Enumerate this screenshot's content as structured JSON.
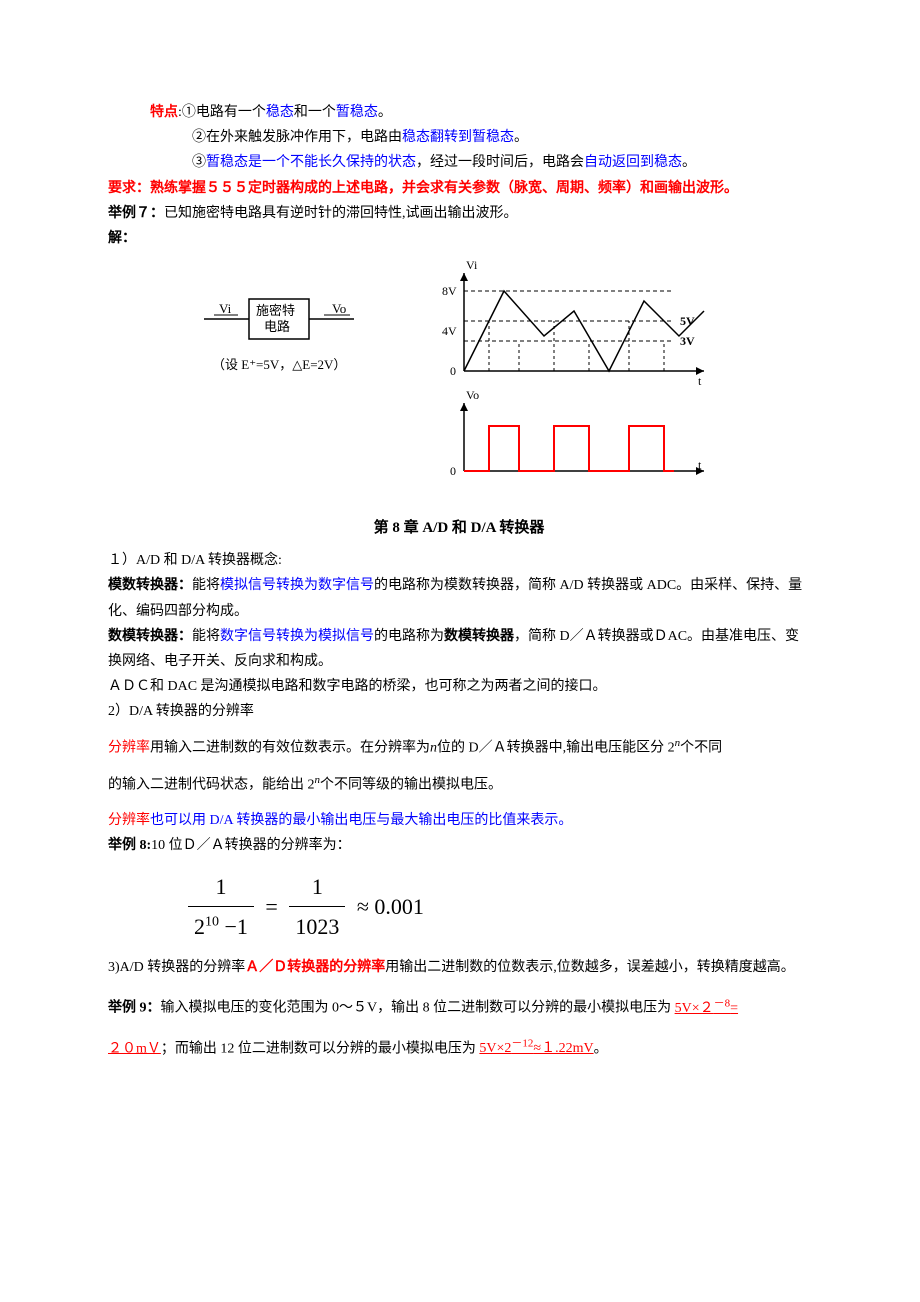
{
  "line1": {
    "label": "特点",
    "text": ":①电路有一个",
    "blue1": "稳态",
    "mid": "和一个",
    "blue2": "暂稳态",
    "end": "。"
  },
  "line2": {
    "text": "②在外来触发脉冲作用下，电路由",
    "blue": "稳态翻转到暂稳态",
    "end": "。"
  },
  "line3": {
    "pre": "③",
    "blue1": "暂稳态是一个不能长久保持的状态",
    "mid": "，经过一段时间后，电路会",
    "blue2": "自动返回到稳态",
    "end": "。"
  },
  "line4": {
    "label": "要求：",
    "text": "熟练掌握５５５定时器构成的上述电路，并会求有关参数（脉宽、周期、频率）和画输出波形。"
  },
  "line5": {
    "label": "举例７：",
    "text": "已知施密特电路具有逆时针的滞回特性,试画出输出波形。"
  },
  "line6": {
    "label": "解："
  },
  "block": {
    "in": "Vi",
    "name1": "施密特",
    "name2": "电路",
    "out": "Vo",
    "cond": "（设 E⁺=5V，△E=2V）"
  },
  "graph": {
    "vi_label": "Vi",
    "vo_label": "Vo",
    "t_label": "t",
    "y_ticks": [
      "8V",
      "4V",
      "0"
    ],
    "thr_hi": "5V",
    "thr_lo": "3V",
    "vo_zero": "0",
    "vi_points": [
      [
        0,
        0
      ],
      [
        40,
        80
      ],
      [
        80,
        35
      ],
      [
        110,
        60
      ],
      [
        145,
        0
      ],
      [
        180,
        70
      ],
      [
        215,
        35
      ],
      [
        240,
        60
      ]
    ],
    "env_dash_y": 80,
    "thr_hi_y": 50,
    "thr_lo_y": 30,
    "vo_pulses": [
      [
        25,
        55
      ],
      [
        90,
        125
      ],
      [
        165,
        200
      ]
    ],
    "colors": {
      "axis": "#000000",
      "dash": "#000000",
      "vo": "#ff0000"
    }
  },
  "chapter": "第 8 章 A/D 和 D/A 转换器",
  "s1": {
    "num": "１）",
    "text": "A/D 和 D/A 转换器概念:"
  },
  "s2": {
    "label": "模数转换器：",
    "pre": "能将",
    "blue": "模拟信号转换为数字信号",
    "post": "的电路称为模数转换器，简称 A/D 转换器或 ADC。由采样、保持、量化、编码四部分构成。"
  },
  "s3": {
    "label": "数模转换器：",
    "pre": "能将",
    "blue": "数字信号转换为模拟信号",
    "mid": "的电路称为",
    "bold": "数模转换器",
    "post": "，简称 D／Ａ转换器或ＤAC。由基准电压、变换网络、电子开关、反向求和构成。"
  },
  "s4": "ＡＤＣ和 DAC 是沟通模拟电路和数字电路的桥梁，也可称之为两者之间的接口。",
  "s5": {
    "num": "2）",
    "text": "D/A 转换器的分辨率"
  },
  "s6": {
    "label": "分辨率",
    "pre": "用输入二进制数的有效位数表示。在分辨率为",
    "it": "n",
    "mid": "位的 D／Ａ转换器中,输出电压能区分 2",
    "exp": "n",
    "post": "个不同"
  },
  "s6b": {
    "pre": "的输入二进制代码状态，能给出 2",
    "exp": "n",
    "post": "个不同等级的输出模拟电压。"
  },
  "s7": {
    "label": "分辨率",
    "text": "也可以用 D/A 转换器的最小输出电压与最大输出电压的比值来表示。"
  },
  "s8": {
    "label": "举例 8:",
    "text": "10 位Ｄ／Ａ转换器的分辨率为："
  },
  "formula": {
    "num1": "1",
    "den1_base": "2",
    "den1_exp": "10",
    "den1_post": " −1",
    "eq": "=",
    "num2": "1",
    "den2": "1023",
    "approx": "≈ 0.001"
  },
  "s9": {
    "num": "3)",
    "pre": "A/D 转换器的分辨率",
    "red": "Ａ／Ｄ转换器的分辨率",
    "post": "用输出二进制数的位数表示,位数越多，误差越小，转换精度越高。"
  },
  "s10": {
    "label": "举例 9：",
    "pre": "输入模拟电压的变化范围为 0～５V，输出 8 位二进制数可以分辨的最小模拟电压为 ",
    "r1": "5V×２",
    "r1exp": "－8",
    "r1eq": "="
  },
  "s11": {
    "r2": "２０mＶ",
    "mid": "；而输出 12 位二进制数可以分辨的最小模拟电压为 ",
    "r3": "5V×2",
    "r3exp": "－12",
    "r3post": "≈１.22mV",
    "end": "。"
  }
}
